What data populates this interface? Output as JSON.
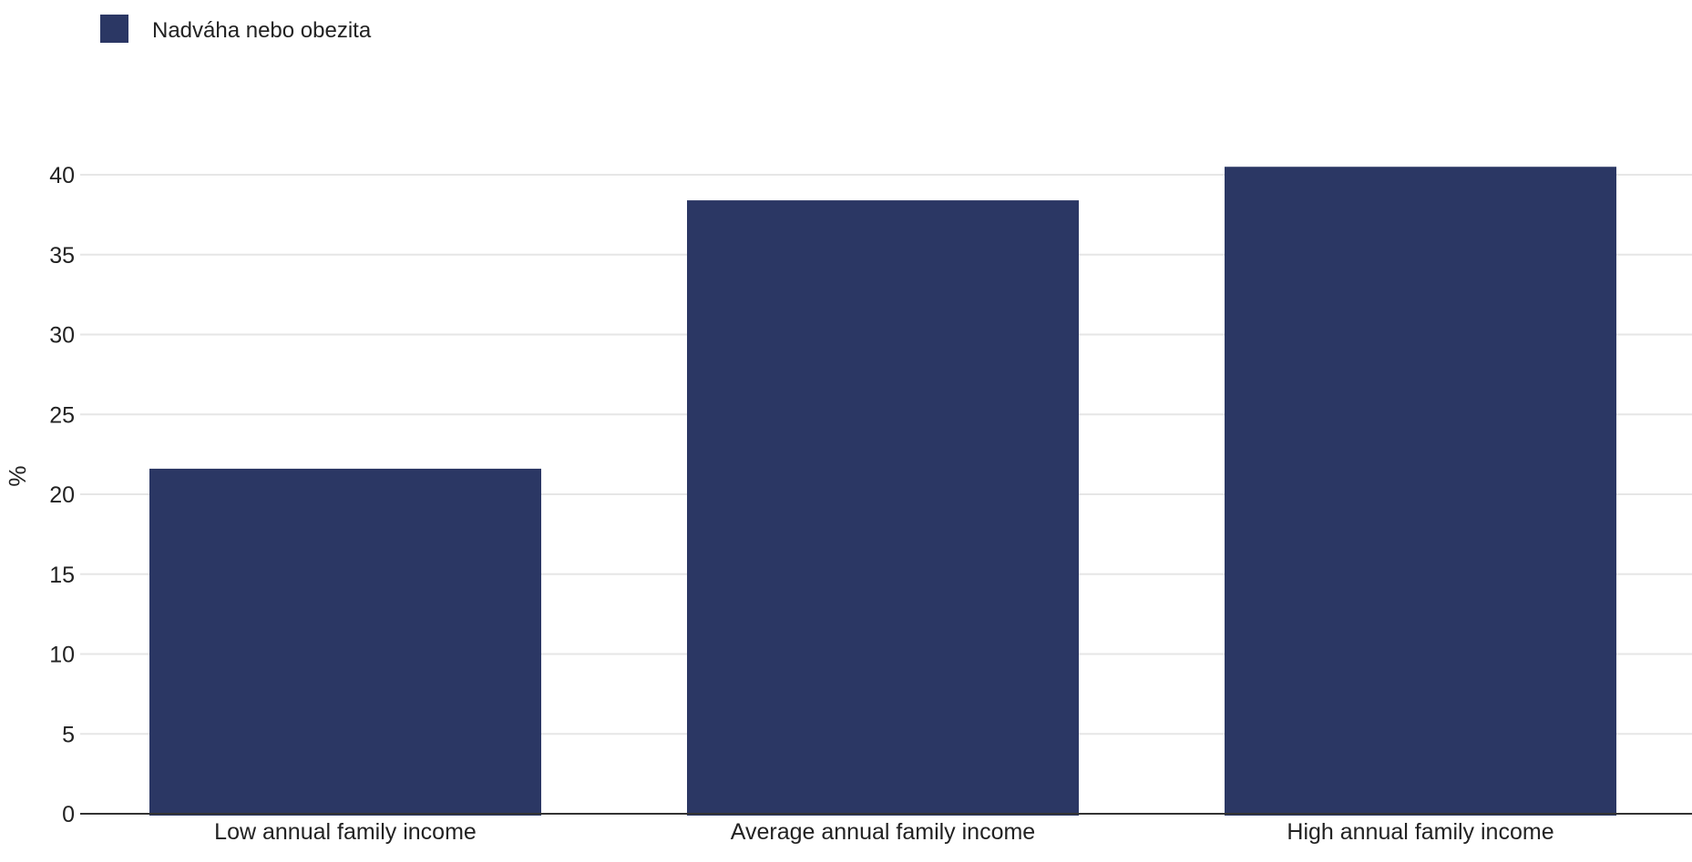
{
  "chart_data": {
    "type": "bar",
    "categories": [
      "Low annual family income",
      "Average annual family income",
      "High annual family income"
    ],
    "series": [
      {
        "name": "Nadváha nebo obezita",
        "values": [
          21.6,
          38.4,
          40.5
        ],
        "color": "#2b3764"
      }
    ],
    "xlabel": "",
    "ylabel": "%",
    "ylim": [
      0,
      40
    ],
    "yticks": [
      0,
      5,
      10,
      15,
      20,
      25,
      30,
      35,
      40
    ],
    "grid": true,
    "legend_position": "top-left"
  }
}
